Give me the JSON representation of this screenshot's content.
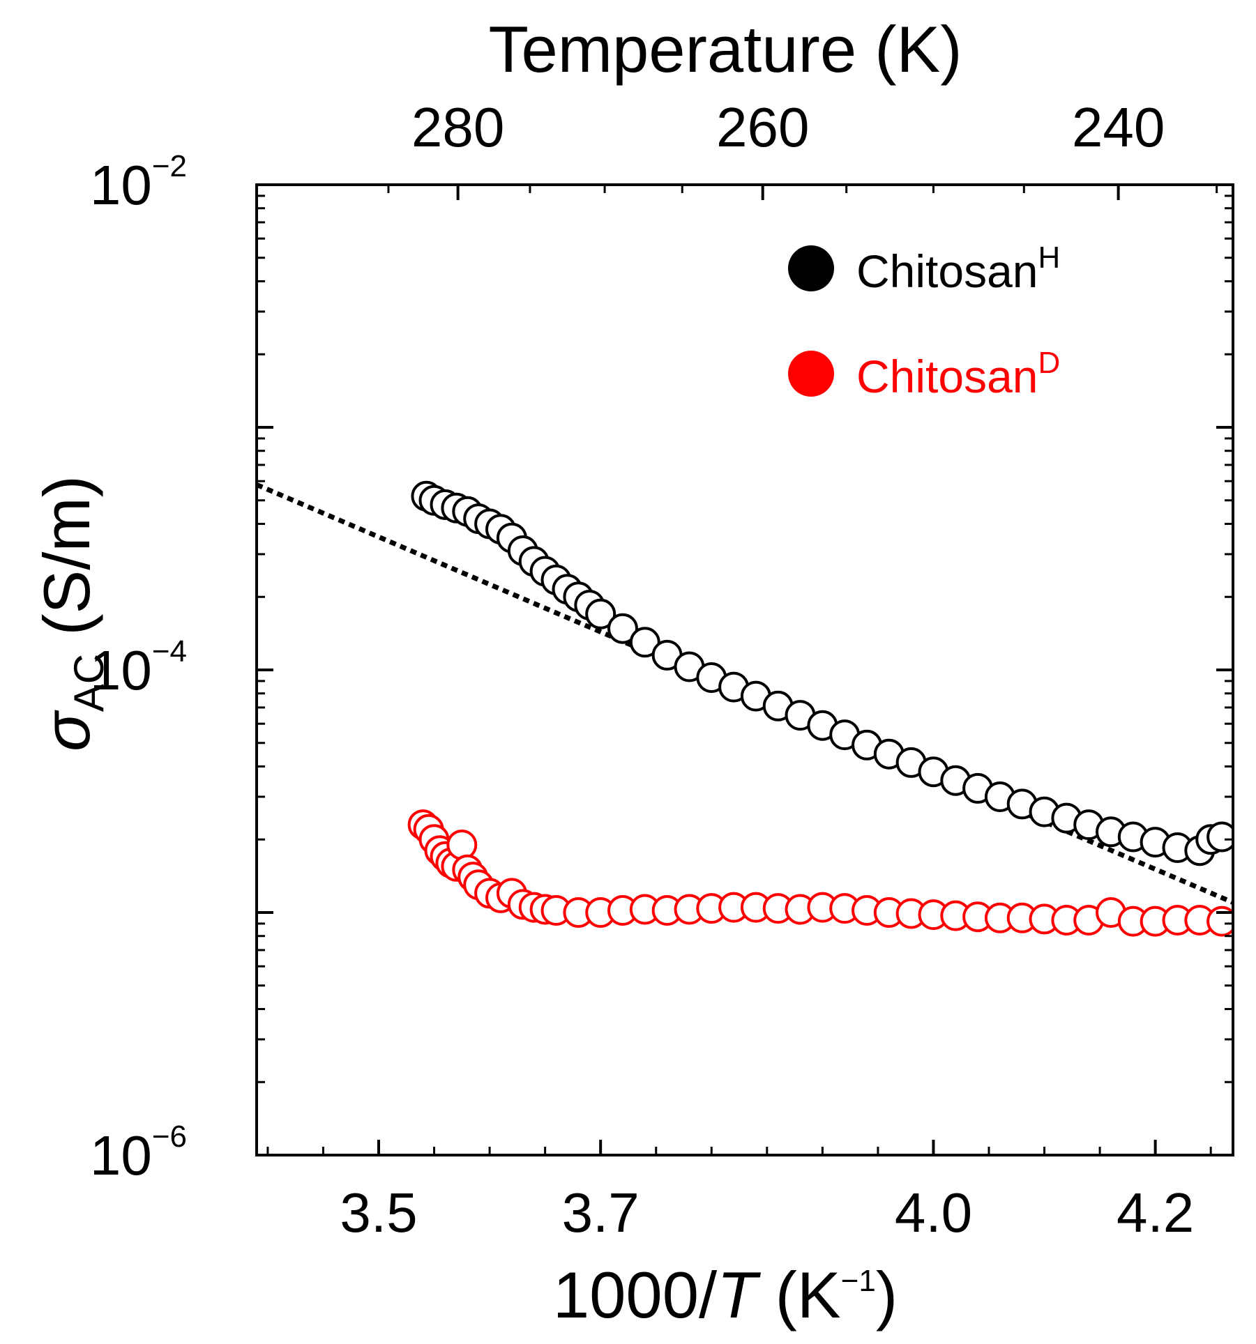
{
  "chart_data": {
    "type": "scatter",
    "title": "",
    "x_axis": {
      "label_prefix": "1000/",
      "label_var": "T",
      "label_unit_open": " (K",
      "label_unit_exp": "−1",
      "label_unit_close": ")",
      "range": [
        3.39,
        4.27
      ],
      "ticks": [
        3.5,
        3.7,
        4.0,
        4.2
      ],
      "tick_labels": [
        "3.5",
        "3.7",
        "4.0",
        "4.2"
      ],
      "minor_step": 0.05
    },
    "top_axis": {
      "label": "Temperature (K)",
      "ticks": [
        280,
        260,
        240
      ],
      "tick_labels": [
        "280",
        "260",
        "240"
      ]
    },
    "y_axis": {
      "scale": "log",
      "label_symbol": "σ",
      "label_subscript": "AC",
      "label_unit": " (S/m)",
      "range": [
        1e-06,
        0.01
      ],
      "ticks": [
        1e-06,
        0.0001,
        0.01
      ],
      "tick_labels": [
        {
          "base": "10",
          "exp": "−6"
        },
        {
          "base": "10",
          "exp": "−4"
        },
        {
          "base": "10",
          "exp": "−2"
        }
      ]
    },
    "legend": {
      "position": "top-right",
      "entries": [
        {
          "base": "Chitosan",
          "sup": "H",
          "color": "#000000"
        },
        {
          "base": "Chitosan",
          "sup": "D",
          "color": "#ff0000"
        }
      ]
    },
    "series": [
      {
        "name": "ChitosanH",
        "color": "#000000",
        "marker": "open-circle",
        "x": [
          3.543,
          3.55,
          3.56,
          3.57,
          3.58,
          3.59,
          3.6,
          3.61,
          3.62,
          3.63,
          3.64,
          3.65,
          3.66,
          3.67,
          3.68,
          3.69,
          3.7,
          3.72,
          3.74,
          3.76,
          3.78,
          3.8,
          3.82,
          3.84,
          3.86,
          3.88,
          3.9,
          3.92,
          3.94,
          3.96,
          3.98,
          4.0,
          4.02,
          4.04,
          4.06,
          4.08,
          4.1,
          4.12,
          4.14,
          4.16,
          4.18,
          4.2,
          4.22,
          4.24,
          4.25,
          4.26
        ],
        "y": [
          0.00052,
          0.0005,
          0.00048,
          0.000465,
          0.00045,
          0.00042,
          0.0004,
          0.00038,
          0.00035,
          0.00031,
          0.00028,
          0.000255,
          0.000235,
          0.000215,
          0.0002,
          0.000185,
          0.00017,
          0.000148,
          0.00013,
          0.000115,
          0.000103,
          9.3e-05,
          8.5e-05,
          7.8e-05,
          7.1e-05,
          6.5e-05,
          5.9e-05,
          5.4e-05,
          4.9e-05,
          4.5e-05,
          4.15e-05,
          3.8e-05,
          3.5e-05,
          3.25e-05,
          3e-05,
          2.8e-05,
          2.6e-05,
          2.45e-05,
          2.3e-05,
          2.15e-05,
          2.05e-05,
          1.95e-05,
          1.85e-05,
          1.8e-05,
          2e-05,
          2.05e-05
        ]
      },
      {
        "name": "ChitosanD",
        "color": "#ff0000",
        "marker": "open-circle",
        "x": [
          3.54,
          3.545,
          3.55,
          3.555,
          3.56,
          3.565,
          3.57,
          3.575,
          3.58,
          3.585,
          3.59,
          3.6,
          3.61,
          3.62,
          3.63,
          3.64,
          3.65,
          3.66,
          3.68,
          3.7,
          3.72,
          3.74,
          3.76,
          3.78,
          3.8,
          3.82,
          3.84,
          3.86,
          3.88,
          3.9,
          3.92,
          3.94,
          3.96,
          3.98,
          4.0,
          4.02,
          4.04,
          4.06,
          4.08,
          4.1,
          4.12,
          4.14,
          4.16,
          4.18,
          4.2,
          4.22,
          4.24,
          4.26
        ],
        "y": [
          2.3e-05,
          2.2e-05,
          2e-05,
          1.8e-05,
          1.7e-05,
          1.6e-05,
          1.55e-05,
          1.9e-05,
          1.5e-05,
          1.4e-05,
          1.3e-05,
          1.2e-05,
          1.15e-05,
          1.2e-05,
          1.08e-05,
          1.05e-05,
          1.03e-05,
          1.02e-05,
          1e-05,
          1e-05,
          1.02e-05,
          1.03e-05,
          1.02e-05,
          1.03e-05,
          1.04e-05,
          1.05e-05,
          1.05e-05,
          1.04e-05,
          1.03e-05,
          1.05e-05,
          1.04e-05,
          1.02e-05,
          1e-05,
          9.9e-06,
          9.8e-06,
          9.7e-06,
          9.6e-06,
          9.5e-06,
          9.5e-06,
          9.4e-06,
          9.3e-06,
          9.3e-06,
          1e-05,
          9.2e-06,
          9.2e-06,
          9.3e-06,
          9.3e-06,
          9.2e-06
        ]
      },
      {
        "name": "fit",
        "style": "dotted-line",
        "color": "#000000",
        "x": [
          3.39,
          4.27
        ],
        "y": [
          0.00058,
          1.1e-05
        ]
      }
    ]
  }
}
